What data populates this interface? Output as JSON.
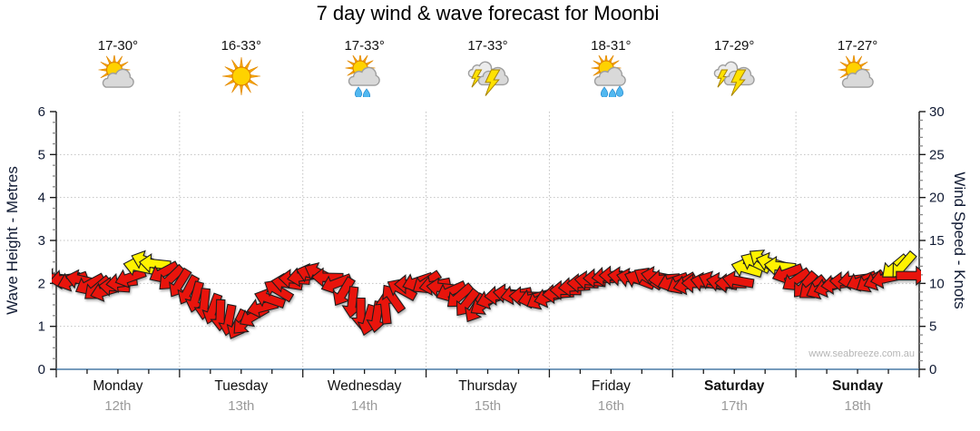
{
  "title": "7 day wind & wave forecast for Moonbi",
  "watermark": "www.seabreeze.com.au",
  "days": [
    {
      "name": "Monday",
      "date": "12th",
      "temp": "17-30°",
      "icon": "sun-cloud",
      "weekend": false,
      "raindrops": 0
    },
    {
      "name": "Tuesday",
      "date": "13th",
      "temp": "16-33°",
      "icon": "sun",
      "weekend": false,
      "raindrops": 0
    },
    {
      "name": "Wednesday",
      "date": "14th",
      "temp": "17-33°",
      "icon": "sun-cloud-rain",
      "weekend": false,
      "raindrops": 2
    },
    {
      "name": "Thursday",
      "date": "15th",
      "temp": "17-33°",
      "icon": "storm",
      "weekend": false,
      "raindrops": 0
    },
    {
      "name": "Friday",
      "date": "16th",
      "temp": "18-31°",
      "icon": "sun-cloud-rain",
      "weekend": false,
      "raindrops": 3
    },
    {
      "name": "Saturday",
      "date": "17th",
      "temp": "17-29°",
      "icon": "storm",
      "weekend": true,
      "raindrops": 0
    },
    {
      "name": "Sunday",
      "date": "18th",
      "temp": "17-27°",
      "icon": "sun-cloud",
      "weekend": true,
      "raindrops": 0
    }
  ],
  "colors": {
    "arrow_red": "#e8140c",
    "arrow_yellow": "#fff200",
    "arrow_outline": "#1d1d1d",
    "grid": "#c2c2c2",
    "axis": "#1a1a1a",
    "minor_tick": "#8a8a8a",
    "bottom_axis": "#4a7ba6",
    "tick_text": "#101a33",
    "sun_disc": "#ffd200",
    "sun_ray": "#f6a600",
    "sun_stroke": "#e08600",
    "cloud_fill": "#d9d9d9",
    "cloud_fill_light": "#ececec",
    "cloud_stroke": "#9e9e9e",
    "bolt_fill": "#ffe200",
    "bolt_stroke": "#a88400",
    "drop_fill": "#52b8f0",
    "drop_stroke": "#2288cc"
  },
  "chart_data": {
    "type": "wind-arrows",
    "title": "7 day wind & wave forecast for Moonbi",
    "x_axis": {
      "unit": "days",
      "range": [
        0,
        7
      ]
    },
    "left_axis": {
      "label": "Wave Height - Metres",
      "range": [
        0,
        6
      ],
      "major_step": 1,
      "minor_step": 0.25
    },
    "right_axis": {
      "label": "Wind Speed - Knots",
      "range": [
        0,
        30
      ],
      "major_step": 5,
      "minor_step": 1
    },
    "grid": "dotted",
    "points_format": [
      "day_offset",
      "wind_knots",
      "arrow_rotation_deg_cw_from_east",
      "color_0red_1yellow"
    ],
    "points": [
      [
        0.0,
        10.6,
        185,
        0
      ],
      [
        0.07,
        10.5,
        172,
        0
      ],
      [
        0.13,
        10.3,
        160,
        0
      ],
      [
        0.2,
        10.4,
        193,
        0
      ],
      [
        0.27,
        9.9,
        152,
        0
      ],
      [
        0.33,
        9.4,
        140,
        0
      ],
      [
        0.4,
        9.1,
        163,
        0
      ],
      [
        0.47,
        9.6,
        184,
        0
      ],
      [
        0.53,
        10.1,
        173,
        0
      ],
      [
        0.6,
        10.7,
        161,
        0
      ],
      [
        0.67,
        11.9,
        192,
        1
      ],
      [
        0.73,
        12.6,
        200,
        1
      ],
      [
        0.8,
        12.3,
        186,
        1
      ],
      [
        0.87,
        11.3,
        152,
        0
      ],
      [
        0.93,
        10.6,
        136,
        0
      ],
      [
        1.0,
        10.0,
        122,
        0
      ],
      [
        1.07,
        9.2,
        118,
        0
      ],
      [
        1.13,
        8.4,
        105,
        0
      ],
      [
        1.2,
        7.6,
        96,
        0
      ],
      [
        1.27,
        7.0,
        110,
        0
      ],
      [
        1.33,
        6.3,
        92,
        0
      ],
      [
        1.4,
        5.7,
        101,
        0
      ],
      [
        1.47,
        5.2,
        116,
        0
      ],
      [
        1.53,
        5.5,
        134,
        0
      ],
      [
        1.6,
        6.2,
        150,
        0
      ],
      [
        1.67,
        7.2,
        166,
        0
      ],
      [
        1.73,
        8.2,
        199,
        0
      ],
      [
        1.8,
        9.2,
        211,
        0
      ],
      [
        1.87,
        10.0,
        189,
        0
      ],
      [
        1.93,
        10.5,
        184,
        0
      ],
      [
        2.0,
        10.8,
        171,
        0
      ],
      [
        2.07,
        11.1,
        196,
        0
      ],
      [
        2.13,
        11.2,
        206,
        0
      ],
      [
        2.2,
        10.7,
        181,
        0
      ],
      [
        2.27,
        10.0,
        159,
        0
      ],
      [
        2.33,
        9.0,
        121,
        0
      ],
      [
        2.4,
        7.8,
        97,
        0
      ],
      [
        2.47,
        6.5,
        90,
        0
      ],
      [
        2.53,
        5.7,
        106,
        0
      ],
      [
        2.6,
        6.1,
        99,
        0
      ],
      [
        2.67,
        7.1,
        264,
        0
      ],
      [
        2.73,
        8.3,
        235,
        0
      ],
      [
        2.8,
        9.3,
        209,
        0
      ],
      [
        2.87,
        9.9,
        180,
        0
      ],
      [
        2.93,
        10.2,
        161,
        0
      ],
      [
        3.0,
        10.1,
        146,
        0
      ],
      [
        3.07,
        9.8,
        169,
        0
      ],
      [
        3.13,
        9.5,
        186,
        0
      ],
      [
        3.2,
        9.1,
        156,
        0
      ],
      [
        3.27,
        8.5,
        139,
        0
      ],
      [
        3.33,
        7.7,
        128,
        0
      ],
      [
        3.4,
        7.1,
        121,
        0
      ],
      [
        3.47,
        7.6,
        146,
        0
      ],
      [
        3.53,
        8.2,
        161,
        0
      ],
      [
        3.6,
        8.6,
        176,
        0
      ],
      [
        3.67,
        8.8,
        186,
        0
      ],
      [
        3.73,
        8.7,
        169,
        0
      ],
      [
        3.8,
        8.5,
        181,
        0
      ],
      [
        3.87,
        8.3,
        166,
        0
      ],
      [
        3.93,
        8.2,
        151,
        0
      ],
      [
        4.0,
        8.4,
        164,
        0
      ],
      [
        4.07,
        8.8,
        176,
        0
      ],
      [
        4.13,
        9.2,
        181,
        0
      ],
      [
        4.2,
        9.6,
        176,
        0
      ],
      [
        4.27,
        10.0,
        181,
        0
      ],
      [
        4.33,
        10.3,
        186,
        0
      ],
      [
        4.4,
        10.6,
        180,
        0
      ],
      [
        4.47,
        10.8,
        175,
        0
      ],
      [
        4.53,
        10.9,
        181,
        0
      ],
      [
        4.6,
        10.8,
        186,
        0
      ],
      [
        4.67,
        10.6,
        192,
        0
      ],
      [
        4.73,
        10.4,
        201,
        0
      ],
      [
        4.8,
        10.6,
        211,
        0
      ],
      [
        4.87,
        10.8,
        191,
        0
      ],
      [
        4.93,
        10.5,
        176,
        0
      ],
      [
        5.0,
        10.2,
        161,
        0
      ],
      [
        5.07,
        10.0,
        151,
        0
      ],
      [
        5.13,
        9.9,
        166,
        0
      ],
      [
        5.2,
        10.0,
        181,
        0
      ],
      [
        5.27,
        10.1,
        191,
        0
      ],
      [
        5.33,
        10.2,
        202,
        0
      ],
      [
        5.4,
        10.1,
        191,
        0
      ],
      [
        5.47,
        10.0,
        181,
        0
      ],
      [
        5.53,
        10.3,
        190,
        0
      ],
      [
        5.6,
        11.7,
        196,
        1
      ],
      [
        5.67,
        12.4,
        206,
        1
      ],
      [
        5.73,
        12.7,
        215,
        1
      ],
      [
        5.8,
        12.4,
        196,
        1
      ],
      [
        5.87,
        12.0,
        186,
        1
      ],
      [
        5.93,
        11.2,
        160,
        0
      ],
      [
        6.0,
        10.4,
        146,
        0
      ],
      [
        6.07,
        9.8,
        131,
        0
      ],
      [
        6.13,
        9.5,
        141,
        0
      ],
      [
        6.2,
        9.4,
        153,
        0
      ],
      [
        6.27,
        9.6,
        163,
        0
      ],
      [
        6.33,
        9.9,
        173,
        0
      ],
      [
        6.4,
        10.2,
        183,
        0
      ],
      [
        6.47,
        10.4,
        173,
        0
      ],
      [
        6.53,
        10.3,
        158,
        0
      ],
      [
        6.6,
        10.2,
        148,
        0
      ],
      [
        6.67,
        10.4,
        158,
        0
      ],
      [
        6.73,
        10.6,
        168,
        0
      ],
      [
        6.8,
        11.9,
        140,
        1
      ],
      [
        6.87,
        12.1,
        131,
        1
      ],
      [
        6.94,
        10.9,
        0,
        0
      ]
    ]
  }
}
